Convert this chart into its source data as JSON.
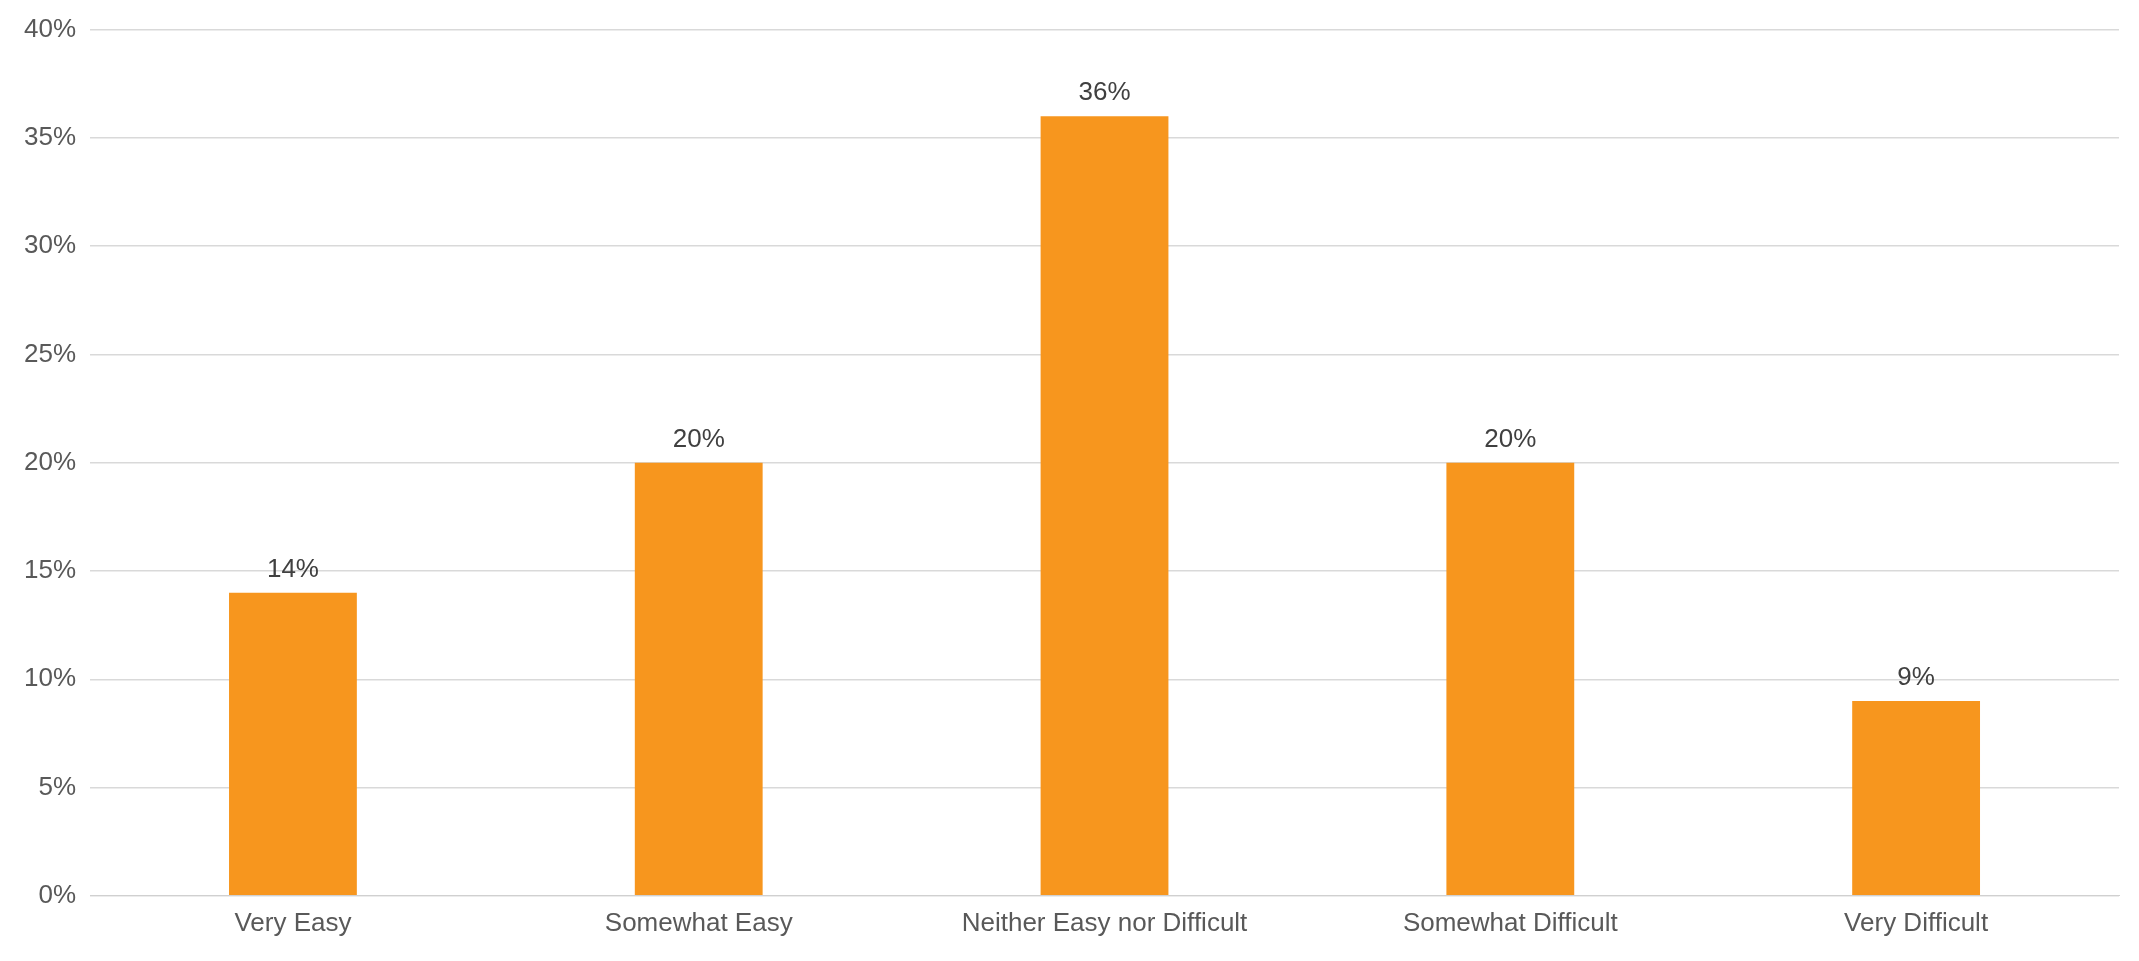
{
  "chart_data": {
    "type": "bar",
    "categories": [
      "Very Easy",
      "Somewhat Easy",
      "Neither Easy nor Difficult",
      "Somewhat Difficult",
      "Very Difficult"
    ],
    "values": [
      14,
      20,
      36,
      20,
      9
    ],
    "color": "#f7961e",
    "value_labels": [
      "14%",
      "20%",
      "36%",
      "20%",
      "9%"
    ],
    "ylim": [
      0,
      40
    ],
    "yticks": [
      {
        "value": 0,
        "label": "0%"
      },
      {
        "value": 5,
        "label": "5%"
      },
      {
        "value": 10,
        "label": "10%"
      },
      {
        "value": 15,
        "label": "15%"
      },
      {
        "value": 20,
        "label": "20%"
      },
      {
        "value": 25,
        "label": "25%"
      },
      {
        "value": 30,
        "label": "30%"
      },
      {
        "value": 35,
        "label": "35%"
      },
      {
        "value": 40,
        "label": "40%"
      }
    ],
    "grid": "y",
    "legend": false
  }
}
